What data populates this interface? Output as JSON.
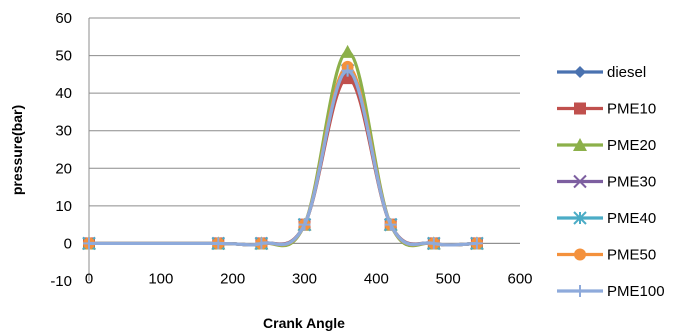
{
  "chart_data": {
    "type": "line",
    "title": "",
    "xlabel": "Crank Angle",
    "ylabel": "pressure(bar)",
    "xlim": [
      0,
      600
    ],
    "ylim": [
      -10,
      60
    ],
    "x_ticks": [
      0,
      100,
      200,
      300,
      400,
      500,
      600
    ],
    "y_ticks": [
      -10,
      0,
      10,
      20,
      30,
      40,
      50,
      60
    ],
    "grid": "horizontal",
    "legend_position": "right",
    "x": [
      0,
      180,
      240,
      300,
      360,
      420,
      480,
      540
    ],
    "series": [
      {
        "name": "diesel",
        "color": "#4a72b0",
        "marker": "diamond",
        "values": [
          0,
          0,
          0,
          5,
          46,
          5,
          0,
          0
        ]
      },
      {
        "name": "PME10",
        "color": "#c0504d",
        "marker": "square",
        "values": [
          0,
          0,
          0,
          5,
          44,
          5,
          0,
          0
        ]
      },
      {
        "name": "PME20",
        "color": "#8cb04a",
        "marker": "triangle",
        "values": [
          0,
          0,
          0,
          5,
          51,
          5,
          0,
          0
        ]
      },
      {
        "name": "PME30",
        "color": "#7d5fa0",
        "marker": "x",
        "values": [
          0,
          0,
          0,
          5,
          46,
          5,
          0,
          0
        ]
      },
      {
        "name": "PME40",
        "color": "#4bacc6",
        "marker": "star",
        "values": [
          0,
          0,
          0,
          5,
          46,
          5,
          0,
          0
        ]
      },
      {
        "name": "PME50",
        "color": "#f4913c",
        "marker": "circle",
        "values": [
          0,
          0,
          0,
          5,
          47,
          5,
          0,
          0
        ]
      },
      {
        "name": "PME100",
        "color": "#8eaadb",
        "marker": "plus",
        "values": [
          0,
          0,
          0,
          5,
          46,
          5,
          0,
          0
        ]
      }
    ]
  }
}
